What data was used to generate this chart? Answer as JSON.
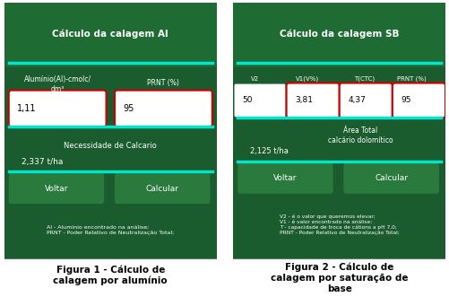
{
  "fig1_title": "Cálculo da calagem Al",
  "fig1_label1": "Alumínio(Al)-cmolc/\ndm³",
  "fig1_label2": "PRNT (%)",
  "fig1_val1": "1,11",
  "fig1_val2": "95",
  "fig1_result_label": "Necessidade de Calcario",
  "fig1_result_val": "2,337 t/ha",
  "fig1_btn1": "Voltar",
  "fig1_btn2": "Calcular",
  "fig1_footnote": "Al - Aluminio encontrado na análise;\nPRNT - Poder Relativo de Neutralização Total;",
  "fig1_caption": "Figura 1 - Cálculo de\ncalagem por alumínio",
  "fig2_title": "Cálculo da calagem SB",
  "fig2_col1": "V2",
  "fig2_col2": "V1(V%)",
  "fig2_col3": "T(CTC)",
  "fig2_col4": "PRNT (%)",
  "fig2_val1": "50",
  "fig2_val2": "3,81",
  "fig2_val3": "4,37",
  "fig2_val4": "95",
  "fig2_result_label": "Área Total\ncalcário dolomítico",
  "fig2_result_val": "2,125 t/ha",
  "fig2_btn1": "Voltar",
  "fig2_btn2": "Calcular",
  "fig2_footnote": "V2 - é o valor que queremos elevar;\nV1 - é valor encontrado na análise;\nT - capacidade de troca de cátions a pH 7,0;\nPRNT - Poder Relativo de Neutralização Total;",
  "fig2_caption": "Figura 2 - Cálculo de\ncalagem por saturação de\nbase",
  "dark_green": "#1a5c2e",
  "medium_green": "#1e6b33",
  "button_green": "#2a7a3e",
  "bright_cyan": "#00e5cc",
  "white": "#ffffff",
  "input_bg": "#ffffff",
  "input_border": "#cc0000",
  "text_white": "#ffffff",
  "caption_black": "#000000",
  "bg_white": "#ffffff"
}
